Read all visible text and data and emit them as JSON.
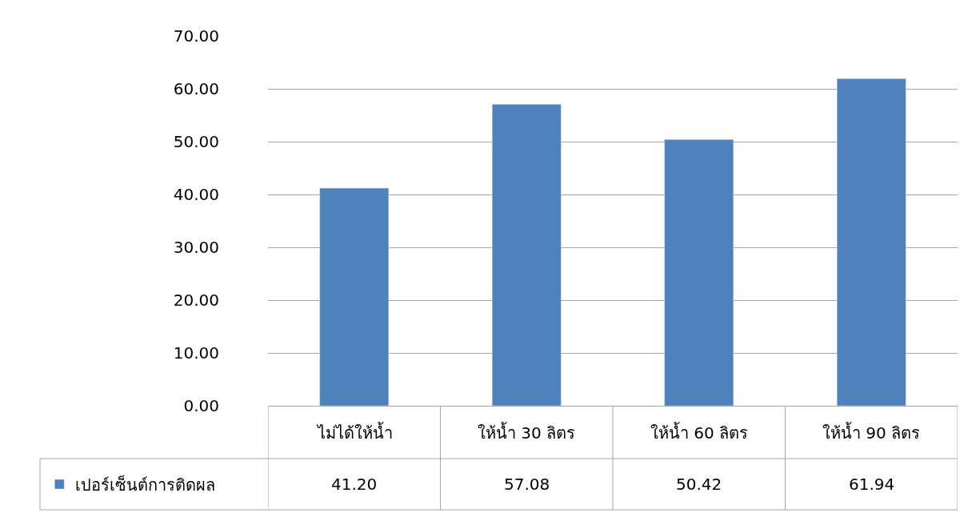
{
  "chart_data": {
    "type": "bar",
    "categories": [
      "ไม่ได้ให้น้ำ",
      "ให้น้ำ 30 ลิตร",
      "ให้น้ำ 60 ลิตร",
      "ให้น้ำ 90 ลิตร"
    ],
    "series": [
      {
        "name": "เปอร์เซ็นต์การติดผล",
        "color": "#4f81bd",
        "values": [
          41.2,
          57.08,
          50.42,
          61.94
        ]
      }
    ],
    "value_labels": [
      "41.20",
      "57.08",
      "50.42",
      "61.94"
    ],
    "ylim": [
      0,
      70
    ],
    "yticks": [
      {
        "value": 0,
        "label": "0.00"
      },
      {
        "value": 10,
        "label": "10.00"
      },
      {
        "value": 20,
        "label": "20.00"
      },
      {
        "value": 30,
        "label": "30.00"
      },
      {
        "value": 40,
        "label": "40.00"
      },
      {
        "value": 50,
        "label": "50.00"
      },
      {
        "value": 60,
        "label": "60.00"
      },
      {
        "value": 70,
        "label": "70.00"
      }
    ],
    "grid": "y",
    "legend": "bottom left"
  }
}
